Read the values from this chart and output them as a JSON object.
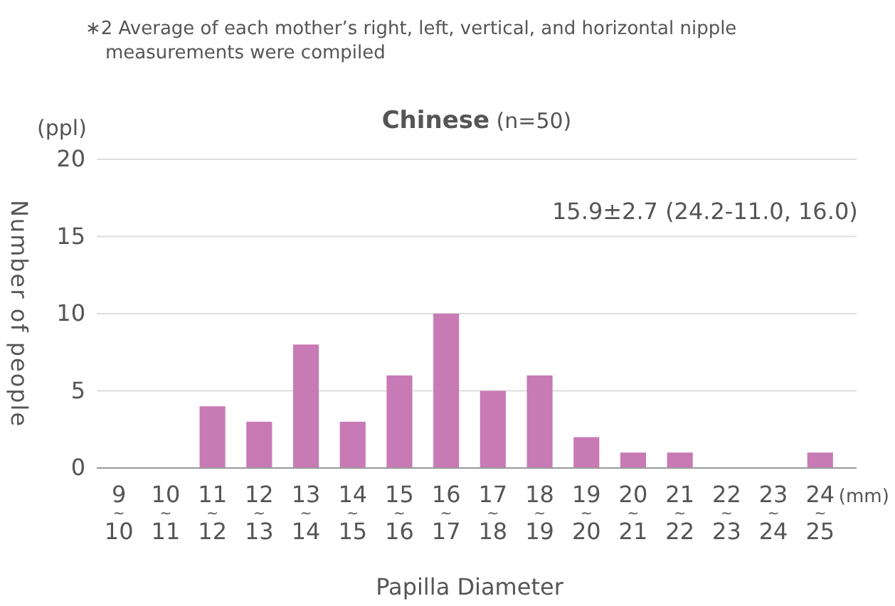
{
  "chart_data": {
    "type": "bar",
    "title": "Chinese",
    "subtitle": "(n=50)",
    "xlabel": "Papilla Diameter",
    "ylabel": "Number of people",
    "categories": [
      "9\n~\n10",
      "10\n~\n11",
      "11\n~\n12",
      "12\n~\n13",
      "13\n~\n14",
      "14\n~\n15",
      "15\n~\n16",
      "16\n~\n17",
      "17\n~\n18",
      "18\n~\n19",
      "19\n~\n20",
      "20\n~\n21",
      "21\n~\n22",
      "22\n~\n23",
      "23\n~\n24",
      "24\n~\n25"
    ],
    "values": [
      0,
      0,
      4,
      3,
      8,
      3,
      6,
      10,
      5,
      6,
      2,
      1,
      1,
      0,
      0,
      1
    ],
    "color": "#c87ab5",
    "ylim": [
      0,
      20
    ],
    "yticks": [
      0,
      5,
      10,
      15,
      20
    ],
    "grid": "y",
    "annotations": [
      "∗2 Average of each mother’s right, left, vertical, and horizontal nipple measurements were compiled",
      "15.9±2.7 (24.2-11.0, 16.0)",
      "(ppl)",
      "(mm)"
    ]
  }
}
